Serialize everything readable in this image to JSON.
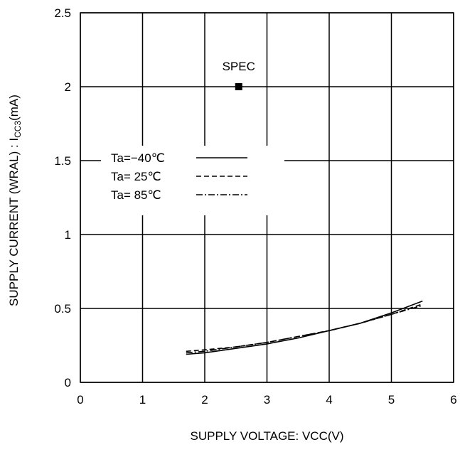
{
  "chart_data": {
    "type": "line",
    "xlabel": "SUPPLY VOLTAGE: VCC(V)",
    "ylabel": {
      "main": "SUPPLY CURRENT (WRAL) : I",
      "sub": "CC3",
      "unit": "(mA)"
    },
    "xlim": [
      0,
      6
    ],
    "ylim": [
      0,
      2.5
    ],
    "xticks": [
      "0",
      "1",
      "2",
      "3",
      "4",
      "5",
      "6"
    ],
    "yticks": [
      "0",
      "0.5",
      "1",
      "1.5",
      "2",
      "2.5"
    ],
    "grid": true,
    "legend_position": "middle-left",
    "series": [
      {
        "name": "Ta=−40℃",
        "dash": "solid",
        "x": [
          1.7,
          2.0,
          2.5,
          3.0,
          3.5,
          4.0,
          4.5,
          5.0,
          5.5
        ],
        "y": [
          0.19,
          0.2,
          0.23,
          0.26,
          0.3,
          0.35,
          0.4,
          0.47,
          0.55
        ]
      },
      {
        "name": "Ta= 25℃",
        "dash": "dashed",
        "x": [
          1.7,
          2.0,
          2.5,
          3.0,
          3.5,
          4.0,
          4.5,
          5.0,
          5.5
        ],
        "y": [
          0.21,
          0.22,
          0.24,
          0.27,
          0.31,
          0.35,
          0.4,
          0.46,
          0.53
        ]
      },
      {
        "name": "Ta= 85℃",
        "dash": "dashdot",
        "x": [
          1.7,
          2.0,
          2.5,
          3.0,
          3.5,
          4.0,
          4.5,
          5.0,
          5.5
        ],
        "y": [
          0.2,
          0.21,
          0.24,
          0.27,
          0.31,
          0.35,
          0.4,
          0.46,
          0.52
        ]
      }
    ],
    "annotations": [
      {
        "text": "SPEC",
        "x": 2.5,
        "y": 2.0,
        "marker": "square"
      }
    ]
  }
}
